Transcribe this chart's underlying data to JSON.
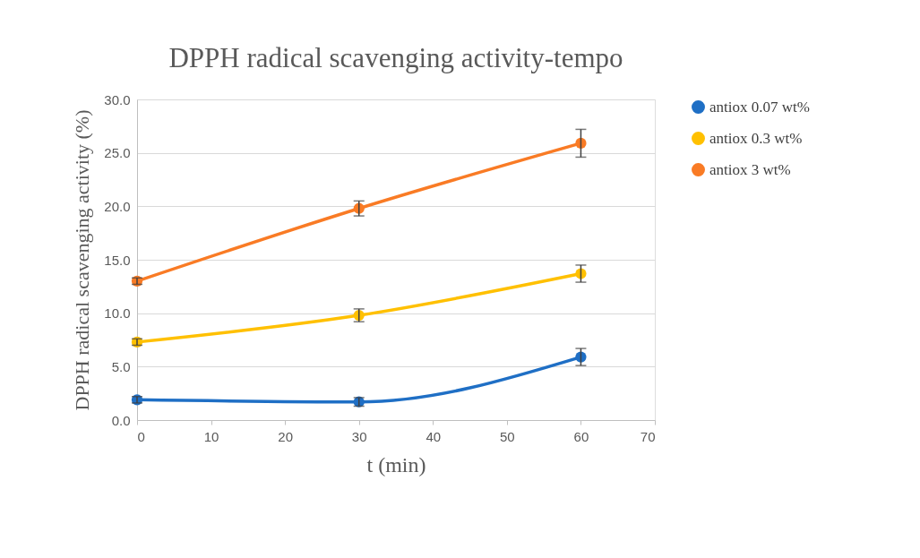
{
  "chart_data": {
    "type": "line",
    "title": "DPPH radical scavenging activity-tempo",
    "xlabel": "t (min)",
    "ylabel": "DPPH radical scavenging activity (%)",
    "x": [
      0,
      30,
      60
    ],
    "series": [
      {
        "name": "antiox 0.07 wt%",
        "color": "#1f6fc5",
        "values": [
          1.9,
          1.7,
          5.9
        ],
        "errors": [
          0.3,
          0.4,
          0.8
        ]
      },
      {
        "name": "antiox 0.3 wt%",
        "color": "#ffc000",
        "values": [
          7.3,
          9.8,
          13.7
        ],
        "errors": [
          0.3,
          0.6,
          0.8
        ]
      },
      {
        "name": "antiox 3 wt%",
        "color": "#f97b25",
        "values": [
          13.0,
          19.8,
          25.9
        ],
        "errors": [
          0.3,
          0.7,
          1.3
        ]
      }
    ],
    "xlim": [
      0,
      70
    ],
    "xticks": [
      0,
      10,
      20,
      30,
      40,
      50,
      60,
      70
    ],
    "ylim": [
      0,
      30
    ],
    "yticks": [
      {
        "value": 0,
        "label": "0.0"
      },
      {
        "value": 5,
        "label": "5.0"
      },
      {
        "value": 10,
        "label": "10.0"
      },
      {
        "value": 15,
        "label": "15.0"
      },
      {
        "value": 20,
        "label": "20.0"
      },
      {
        "value": 25,
        "label": "25.0"
      },
      {
        "value": 30,
        "label": "30.0"
      }
    ],
    "grid": "y",
    "legend": "right",
    "marker": "circle",
    "line_style": "solid"
  }
}
